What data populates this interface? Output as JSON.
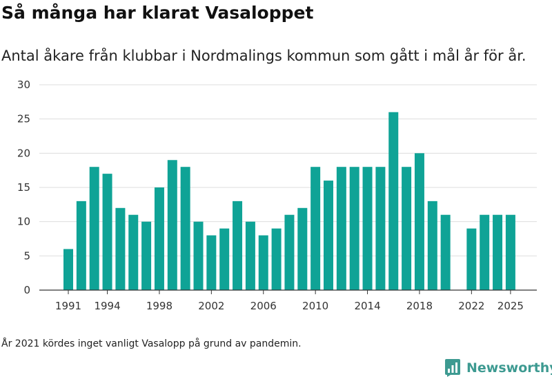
{
  "title": "Så många har klarat Vasaloppet",
  "subtitle": "Antal åkare från klubbar i Nordmalings kommun som gått i mål år för år.",
  "note": "År 2021 kördes inget vanligt Vasalopp på grund av pandemin.",
  "brand": {
    "name": "Newsworthy",
    "icon": "newsworthy-logo-icon"
  },
  "colors": {
    "bar": "#0fa396",
    "grid": "#dddddd",
    "axis": "#333333",
    "brand": "#3d9a91"
  },
  "chart_data": {
    "type": "bar",
    "title": "Så många har klarat Vasaloppet",
    "xlabel": "",
    "ylabel": "",
    "ylim": [
      0,
      30
    ],
    "yticks": [
      0,
      5,
      10,
      15,
      20,
      25,
      30
    ],
    "xticks": [
      "1991",
      "1994",
      "1998",
      "2002",
      "2006",
      "2010",
      "2014",
      "2018",
      "2022",
      "2025"
    ],
    "categories": [
      "1991",
      "1992",
      "1993",
      "1994",
      "1995",
      "1996",
      "1997",
      "1998",
      "1999",
      "2000",
      "2001",
      "2002",
      "2003",
      "2004",
      "2005",
      "2006",
      "2007",
      "2008",
      "2009",
      "2010",
      "2011",
      "2012",
      "2013",
      "2014",
      "2015",
      "2016",
      "2017",
      "2018",
      "2019",
      "2020",
      "2021",
      "2022",
      "2023",
      "2024",
      "2025"
    ],
    "values": [
      6,
      13,
      18,
      17,
      12,
      11,
      10,
      15,
      19,
      18,
      10,
      8,
      9,
      13,
      10,
      8,
      9,
      11,
      12,
      18,
      16,
      18,
      18,
      18,
      18,
      26,
      18,
      20,
      13,
      11,
      null,
      9,
      11,
      11,
      11
    ]
  }
}
